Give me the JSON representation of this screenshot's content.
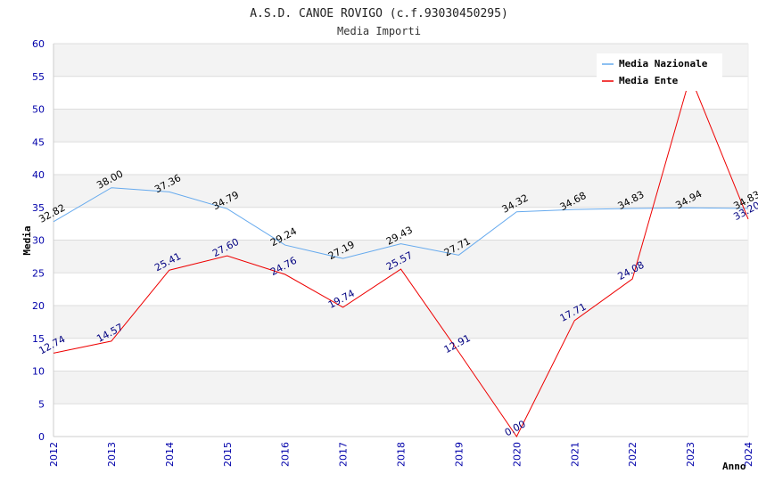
{
  "chart_data": {
    "type": "line",
    "title": "A.S.D. CANOE ROVIGO (c.f.93030450295)",
    "subtitle": "Media Importi",
    "xlabel": "Anno",
    "ylabel": "Media",
    "ylim": [
      0,
      60
    ],
    "yticks": [
      0,
      5,
      10,
      15,
      20,
      25,
      30,
      35,
      40,
      45,
      50,
      55,
      60
    ],
    "x": [
      "2012",
      "2013",
      "2014",
      "2015",
      "2016",
      "2017",
      "2018",
      "2019",
      "2020",
      "2021",
      "2022",
      "2023",
      "2024"
    ],
    "grid": true,
    "legend_position": "top-right",
    "series": [
      {
        "name": "Media Nazionale",
        "color": "#66aaee",
        "values": [
          32.82,
          38.0,
          37.36,
          34.79,
          29.24,
          27.19,
          29.43,
          27.71,
          34.32,
          34.68,
          34.83,
          34.94,
          34.83
        ],
        "labels": [
          "32.82",
          "38.00",
          "37.36",
          "34.79",
          "29.24",
          "27.19",
          "29.43",
          "27.71",
          "34.32",
          "34.68",
          "34.83",
          "34.94",
          "34.83"
        ]
      },
      {
        "name": "Media Ente",
        "color": "#ee0000",
        "values": [
          12.74,
          14.57,
          25.41,
          27.6,
          24.76,
          19.74,
          25.57,
          12.91,
          0.0,
          17.71,
          24.08,
          55.0,
          33.2
        ],
        "labels": [
          "12.74",
          "14.57",
          "25.41",
          "27.60",
          "24.76",
          "19.74",
          "25.57",
          "12.91",
          "0.00",
          "17.71",
          "24.08",
          "",
          "33.20"
        ]
      }
    ]
  }
}
